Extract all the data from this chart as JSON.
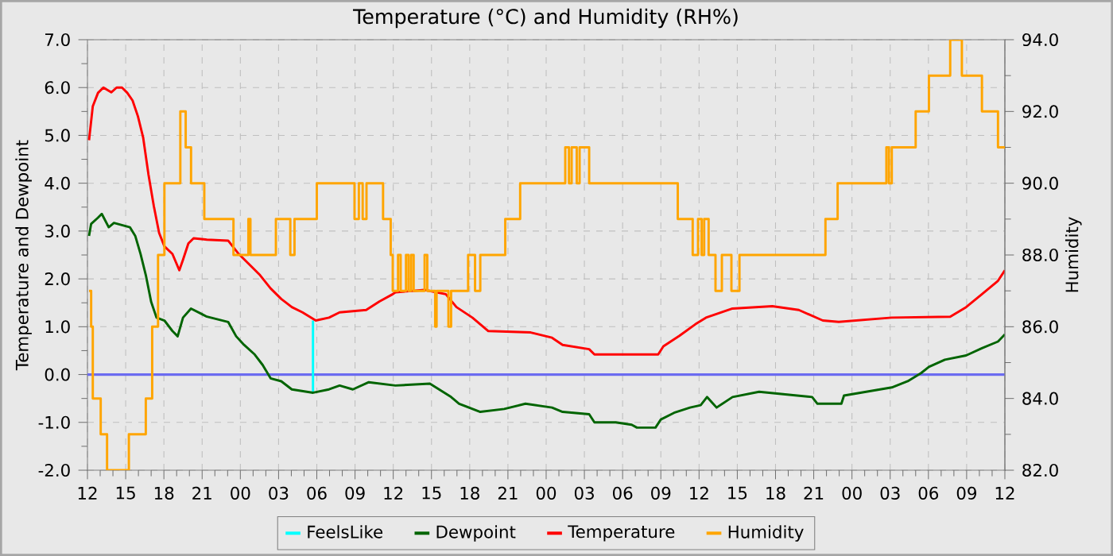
{
  "chart_data": {
    "type": "line",
    "title": "Temperature (°C) and Humidity (RH%)",
    "ylabel": "Temperature and Dewpoint",
    "y2label": "Humidity",
    "xlim": [
      12,
      84
    ],
    "xticks": [
      12,
      15,
      18,
      21,
      {
        "value": 24,
        "label": "00"
      },
      {
        "value": 27,
        "label": "03"
      },
      {
        "value": 30,
        "label": "06"
      },
      {
        "value": 33,
        "label": "09"
      },
      {
        "value": 36,
        "label": "12"
      },
      {
        "value": 39,
        "label": "15"
      },
      {
        "value": 42,
        "label": "18"
      },
      {
        "value": 45,
        "label": "21"
      },
      {
        "value": 48,
        "label": "00"
      },
      {
        "value": 51,
        "label": "03"
      },
      {
        "value": 54,
        "label": "06"
      },
      {
        "value": 57,
        "label": "09"
      },
      {
        "value": 60,
        "label": "12"
      },
      {
        "value": 63,
        "label": "15"
      },
      {
        "value": 66,
        "label": "18"
      },
      {
        "value": 69,
        "label": "21"
      },
      {
        "value": 72,
        "label": "00"
      },
      {
        "value": 75,
        "label": "03"
      },
      {
        "value": 78,
        "label": "06"
      },
      {
        "value": 81,
        "label": "09"
      },
      {
        "value": 84,
        "label": "12"
      }
    ],
    "ylim": [
      -2,
      7
    ],
    "yticks": [
      {
        "value": -2,
        "label": "-2.0"
      },
      {
        "value": -1,
        "label": "-1.0"
      },
      {
        "value": 0,
        "label": "0.0"
      },
      {
        "value": 1,
        "label": "1.0"
      },
      {
        "value": 2,
        "label": "2.0"
      },
      {
        "value": 3,
        "label": "3.0"
      },
      {
        "value": 4,
        "label": "4.0"
      },
      {
        "value": 5,
        "label": "5.0"
      },
      {
        "value": 6,
        "label": "6.0"
      },
      {
        "value": 7,
        "label": "7.0"
      }
    ],
    "y2lim": [
      82,
      94
    ],
    "y2ticks": [
      {
        "value": 82,
        "label": "82.0"
      },
      {
        "value": 84,
        "label": "84.0"
      },
      {
        "value": 86,
        "label": "86.0"
      },
      {
        "value": 88,
        "label": "88.0"
      },
      {
        "value": 90,
        "label": "90.0"
      },
      {
        "value": 92,
        "label": "92.0"
      },
      {
        "value": 94,
        "label": "94.0"
      }
    ],
    "grid": true,
    "legend": "bottom",
    "ref_lines": [
      {
        "axis": "y",
        "value": 0,
        "color": "#6b6bf0"
      }
    ],
    "series": [
      {
        "name": "FeelsLike",
        "color": "#00ffff",
        "x": [
          29.7,
          29.7
        ],
        "values": [
          1.13,
          -0.36
        ]
      },
      {
        "name": "Dewpoint",
        "color": "#006400",
        "x": [
          12.125,
          12.29,
          12.83,
          13.125,
          13.67,
          14.08,
          15.33,
          15.75,
          16.17,
          16.58,
          17.0,
          17.42,
          18.04,
          18.67,
          19.08,
          19.5,
          20.125,
          21.375,
          23.04,
          23.67,
          24.29,
          25.125,
          25.75,
          26.375,
          27.21,
          28.04,
          29.71,
          30.96,
          31.79,
          32.83,
          34.08,
          36.17,
          38.875,
          40.54,
          41.17,
          42.83,
          44.71,
          46.375,
          48.46,
          49.29,
          51.375,
          51.79,
          53.46,
          54.71,
          55.125,
          56.58,
          57.0,
          58.04,
          59.29,
          60.125,
          60.625,
          61.375,
          62.625,
          64.71,
          68.875,
          69.29,
          71.17,
          71.375,
          75.125,
          76.375,
          77.42,
          78.04,
          79.29,
          80.96,
          82.2,
          83.46,
          84
        ],
        "values": [
          2.9,
          3.15,
          3.28,
          3.36,
          3.08,
          3.17,
          3.08,
          2.9,
          2.52,
          2.08,
          1.52,
          1.19,
          1.13,
          0.91,
          0.8,
          1.19,
          1.38,
          1.21,
          1.1,
          0.8,
          0.62,
          0.42,
          0.2,
          -0.08,
          -0.14,
          -0.31,
          -0.38,
          -0.31,
          -0.23,
          -0.31,
          -0.16,
          -0.23,
          -0.19,
          -0.47,
          -0.61,
          -0.78,
          -0.72,
          -0.61,
          -0.69,
          -0.78,
          -0.83,
          -1.0,
          -1.0,
          -1.05,
          -1.11,
          -1.11,
          -0.94,
          -0.8,
          -0.69,
          -0.64,
          -0.47,
          -0.69,
          -0.47,
          -0.36,
          -0.47,
          -0.61,
          -0.61,
          -0.44,
          -0.27,
          -0.14,
          0.03,
          0.16,
          0.31,
          0.4,
          0.55,
          0.69,
          0.84
        ]
      },
      {
        "name": "Temperature",
        "color": "#ff0000",
        "x": [
          12.125,
          12.42,
          12.83,
          13.25,
          13.875,
          14.29,
          14.71,
          15.125,
          15.54,
          15.96,
          16.375,
          16.79,
          17.21,
          17.625,
          18.04,
          18.67,
          19.21,
          19.5,
          19.92,
          20.33,
          21.375,
          23.04,
          23.875,
          24.71,
          25.54,
          26.375,
          27.21,
          28.04,
          28.875,
          29.92,
          30.96,
          31.79,
          33.875,
          34.92,
          35.96,
          36.17,
          38.46,
          40.125,
          40.96,
          42.21,
          43.46,
          46.79,
          48.46,
          49.29,
          51.375,
          51.79,
          56.79,
          57.2,
          58.46,
          59.7,
          60.54,
          62.625,
          65.75,
          67.83,
          69.71,
          70.96,
          75.125,
          79.71,
          80.96,
          82.2,
          83.46,
          84
        ],
        "values": [
          4.9,
          5.61,
          5.89,
          6.0,
          5.9,
          6.0,
          6.0,
          5.89,
          5.73,
          5.4,
          4.95,
          4.18,
          3.52,
          2.96,
          2.68,
          2.52,
          2.18,
          2.4,
          2.74,
          2.85,
          2.82,
          2.8,
          2.52,
          2.3,
          2.08,
          1.8,
          1.58,
          1.41,
          1.3,
          1.13,
          1.19,
          1.3,
          1.35,
          1.53,
          1.68,
          1.72,
          1.77,
          1.68,
          1.41,
          1.19,
          0.91,
          0.88,
          0.77,
          0.62,
          0.53,
          0.42,
          0.42,
          0.59,
          0.81,
          1.05,
          1.19,
          1.38,
          1.43,
          1.35,
          1.13,
          1.1,
          1.19,
          1.21,
          1.41,
          1.68,
          1.96,
          2.18
        ]
      },
      {
        "name": "Humidity",
        "color": "#ffa500",
        "type": "step",
        "axis": "y2",
        "x": [
          12.125,
          12.29,
          12.42,
          13.04,
          13.54,
          15.25,
          16.58,
          17.08,
          17.54,
          18.04,
          19.29,
          19.71,
          20.13,
          21.17,
          23.46,
          24.63,
          24.79,
          26.79,
          27.92,
          28.25,
          30.0,
          32.96,
          33.3,
          33.6,
          33.9,
          35.2,
          35.8,
          35.96,
          36.375,
          36.58,
          37.0,
          37.2,
          37.4,
          37.6,
          38.46,
          38.67,
          39.29,
          39.4,
          40.33,
          40.54,
          41.875,
          42.42,
          42.83,
          44.79,
          45.96,
          49.5,
          49.79,
          50.0,
          50.4,
          50.625,
          51.375,
          58.33,
          59.5,
          59.92,
          60.2,
          60.4,
          60.75,
          61.29,
          61.79,
          62.54,
          63.17,
          69.92,
          70.875,
          74.7,
          74.9,
          75.125,
          77.0,
          78.04,
          79.71,
          80.625,
          82.2,
          83.46,
          84
        ],
        "values": [
          87,
          86,
          84,
          83,
          82,
          83,
          84,
          86,
          88,
          90,
          92,
          91,
          90,
          89,
          88,
          89,
          88,
          89,
          88,
          89,
          90,
          89,
          90,
          89,
          90,
          89,
          88,
          87,
          88,
          87,
          88,
          87,
          88,
          87,
          88,
          87,
          86,
          87,
          86,
          87,
          88,
          87,
          88,
          89,
          90,
          91,
          90,
          91,
          90,
          91,
          90,
          89,
          88,
          89,
          88,
          89,
          88,
          87,
          88,
          87,
          88,
          89,
          90,
          91,
          90,
          91,
          92,
          93,
          94,
          93,
          92,
          91,
          91
        ]
      }
    ]
  }
}
